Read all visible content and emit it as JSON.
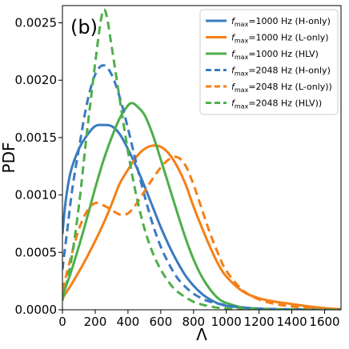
{
  "chart_data": {
    "type": "line",
    "panel_label": "(b)",
    "xlabel": "Λ",
    "ylabel": "PDF",
    "xlim": [
      0,
      1700
    ],
    "ylim": [
      0,
      0.00265
    ],
    "x_ticks": [
      0,
      200,
      400,
      600,
      800,
      1000,
      1200,
      1400,
      1600
    ],
    "x_tick_labels": [
      "0",
      "200",
      "400",
      "600",
      "800",
      "1000",
      "1200",
      "1400",
      "1600"
    ],
    "y_ticks": [
      0,
      0.0005,
      0.001,
      0.0015,
      0.002,
      0.0025
    ],
    "y_tick_labels": [
      "0.0000",
      "0.0005",
      "0.0010",
      "0.0015",
      "0.0020",
      "0.0025"
    ],
    "grid": false,
    "legend_position": "top-right",
    "series": [
      {
        "name": "fmax=1000 Hz (H-only)",
        "legend": {
          "prefix": "f",
          "sub": "max",
          "rest": "=1000 Hz (H-only)"
        },
        "color": "#3a7bbf",
        "dashed": false,
        "points": [
          [
            0,
            0.00066
          ],
          [
            20,
            0.00095
          ],
          [
            50,
            0.0012
          ],
          [
            100,
            0.0014
          ],
          [
            150,
            0.00152
          ],
          [
            200,
            0.0016
          ],
          [
            250,
            0.00161
          ],
          [
            300,
            0.0016
          ],
          [
            350,
            0.00153
          ],
          [
            400,
            0.0014
          ],
          [
            450,
            0.00125
          ],
          [
            500,
            0.00108
          ],
          [
            550,
            0.0009
          ],
          [
            600,
            0.00072
          ],
          [
            650,
            0.00056
          ],
          [
            700,
            0.00042
          ],
          [
            750,
            0.0003
          ],
          [
            800,
            0.00021
          ],
          [
            850,
            0.00014
          ],
          [
            900,
            9e-05
          ],
          [
            950,
            5.5e-05
          ],
          [
            1000,
            3.5e-05
          ],
          [
            1100,
            2e-05
          ],
          [
            1200,
            1e-05
          ],
          [
            1400,
            4e-06
          ],
          [
            1700,
            1e-06
          ]
        ]
      },
      {
        "name": "fmax=1000 Hz (L-only)",
        "legend": {
          "prefix": "f",
          "sub": "max",
          "rest": "=1000 Hz (L-only)"
        },
        "color": "#f57f17",
        "dashed": false,
        "points": [
          [
            0,
            0.0001
          ],
          [
            50,
            0.00021
          ],
          [
            100,
            0.00033
          ],
          [
            150,
            0.00046
          ],
          [
            200,
            0.0006
          ],
          [
            250,
            0.00075
          ],
          [
            300,
            0.00092
          ],
          [
            350,
            0.0011
          ],
          [
            400,
            0.00122
          ],
          [
            450,
            0.00133
          ],
          [
            500,
            0.0014
          ],
          [
            550,
            0.00143
          ],
          [
            600,
            0.00142
          ],
          [
            650,
            0.00136
          ],
          [
            700,
            0.00125
          ],
          [
            750,
            0.0011
          ],
          [
            800,
            0.0009
          ],
          [
            850,
            0.00072
          ],
          [
            900,
            0.00055
          ],
          [
            950,
            0.0004
          ],
          [
            1000,
            0.00029
          ],
          [
            1100,
            0.00016
          ],
          [
            1200,
            0.0001
          ],
          [
            1300,
            7e-05
          ],
          [
            1400,
            5e-05
          ],
          [
            1500,
            3e-05
          ],
          [
            1600,
            1.5e-05
          ],
          [
            1700,
            5e-06
          ]
        ]
      },
      {
        "name": "fmax=1000 Hz (HLV)",
        "legend": {
          "prefix": "f",
          "sub": "max",
          "rest": "=1000 Hz (HLV)"
        },
        "color": "#4daf4a",
        "dashed": false,
        "points": [
          [
            0,
            0.00012
          ],
          [
            50,
            0.00032
          ],
          [
            100,
            0.00055
          ],
          [
            150,
            0.0008
          ],
          [
            200,
            0.00106
          ],
          [
            250,
            0.0013
          ],
          [
            300,
            0.0015
          ],
          [
            350,
            0.00167
          ],
          [
            400,
            0.00178
          ],
          [
            425,
            0.0018
          ],
          [
            450,
            0.00178
          ],
          [
            500,
            0.0017
          ],
          [
            550,
            0.00153
          ],
          [
            600,
            0.00131
          ],
          [
            650,
            0.00108
          ],
          [
            700,
            0.00085
          ],
          [
            750,
            0.00063
          ],
          [
            800,
            0.00044
          ],
          [
            850,
            0.00029
          ],
          [
            900,
            0.00018
          ],
          [
            950,
            0.0001
          ],
          [
            1000,
            6e-05
          ],
          [
            1100,
            2e-05
          ],
          [
            1200,
            8e-06
          ],
          [
            1400,
            2e-06
          ],
          [
            1700,
            0
          ]
        ]
      },
      {
        "name": "fmax=2048 Hz (H-only)",
        "legend": {
          "prefix": "f",
          "sub": "max",
          "rest": "=2048 Hz (H-only)"
        },
        "color": "#3a7bbf",
        "dashed": true,
        "points": [
          [
            0,
            0.00035
          ],
          [
            30,
            0.0007
          ],
          [
            60,
            0.00105
          ],
          [
            100,
            0.0014
          ],
          [
            150,
            0.0018
          ],
          [
            200,
            0.00205
          ],
          [
            250,
            0.00213
          ],
          [
            300,
            0.00205
          ],
          [
            350,
            0.00185
          ],
          [
            400,
            0.00158
          ],
          [
            450,
            0.00128
          ],
          [
            500,
            0.001
          ],
          [
            550,
            0.00075
          ],
          [
            600,
            0.00055
          ],
          [
            650,
            0.0004
          ],
          [
            700,
            0.00028
          ],
          [
            750,
            0.0002
          ],
          [
            800,
            0.00014
          ],
          [
            850,
            0.0001
          ],
          [
            900,
            7e-05
          ],
          [
            1000,
            4e-05
          ],
          [
            1100,
            2e-05
          ],
          [
            1300,
            5e-06
          ],
          [
            1700,
            0
          ]
        ]
      },
      {
        "name": "fmax=2048 Hz (L-only))",
        "legend": {
          "prefix": "f",
          "sub": "max",
          "rest": "=2048 Hz (L-only))"
        },
        "color": "#f57f17",
        "dashed": true,
        "points": [
          [
            0,
            0.00017
          ],
          [
            50,
            0.00045
          ],
          [
            100,
            0.0007
          ],
          [
            150,
            0.00086
          ],
          [
            200,
            0.00093
          ],
          [
            250,
            0.00091
          ],
          [
            300,
            0.00087
          ],
          [
            350,
            0.00083
          ],
          [
            400,
            0.00084
          ],
          [
            450,
            0.00092
          ],
          [
            500,
            0.00103
          ],
          [
            550,
            0.00114
          ],
          [
            600,
            0.00124
          ],
          [
            650,
            0.00131
          ],
          [
            700,
            0.00133
          ],
          [
            750,
            0.00126
          ],
          [
            800,
            0.00109
          ],
          [
            850,
            0.00088
          ],
          [
            900,
            0.00067
          ],
          [
            950,
            0.00049
          ],
          [
            1000,
            0.00034
          ],
          [
            1100,
            0.00017
          ],
          [
            1200,
            9e-05
          ],
          [
            1300,
            5e-05
          ],
          [
            1400,
            3e-05
          ],
          [
            1500,
            1.5e-05
          ],
          [
            1700,
            3e-06
          ]
        ]
      },
      {
        "name": "fmax=2048 Hz (HLV))",
        "legend": {
          "prefix": "f",
          "sub": "max",
          "rest": "=2048 Hz (HLV))"
        },
        "color": "#4daf4a",
        "dashed": true,
        "points": [
          [
            0,
            8e-05
          ],
          [
            50,
            0.0004
          ],
          [
            100,
            0.0009
          ],
          [
            150,
            0.00155
          ],
          [
            200,
            0.00215
          ],
          [
            230,
            0.00248
          ],
          [
            250,
            0.00261
          ],
          [
            270,
            0.00256
          ],
          [
            300,
            0.0023
          ],
          [
            350,
            0.00183
          ],
          [
            400,
            0.00138
          ],
          [
            450,
            0.001
          ],
          [
            500,
            0.00071
          ],
          [
            550,
            0.0005
          ],
          [
            600,
            0.00035
          ],
          [
            650,
            0.00024
          ],
          [
            700,
            0.00016
          ],
          [
            800,
            7e-05
          ],
          [
            900,
            3e-05
          ],
          [
            1000,
            1.2e-05
          ],
          [
            1200,
            2e-06
          ],
          [
            1700,
            0
          ]
        ]
      }
    ]
  }
}
